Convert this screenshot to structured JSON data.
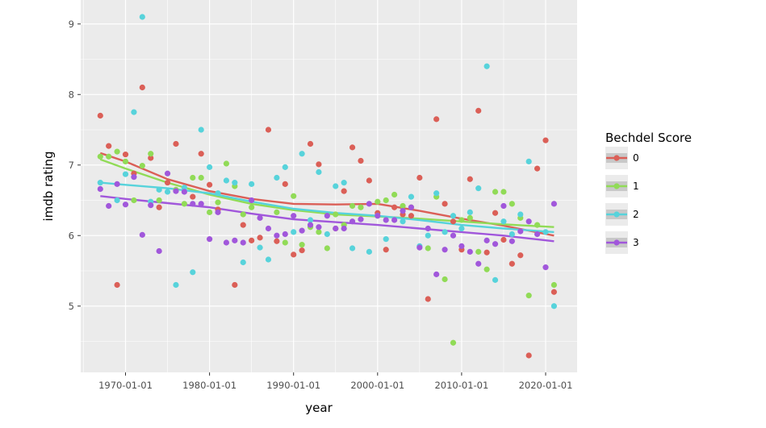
{
  "chart_data": {
    "type": "scatter",
    "xlabel": "year",
    "ylabel": "imdb rating",
    "x_type": "date",
    "xlim": [
      "1964-09-01",
      "2023-10-01"
    ],
    "ylim": [
      4.06,
      9.34
    ],
    "x_ticks": [
      "1970-01-01",
      "1980-01-01",
      "1990-01-01",
      "2000-01-01",
      "2010-01-01",
      "2020-01-01"
    ],
    "y_ticks": [
      5,
      6,
      7,
      8,
      9
    ],
    "grid": true,
    "legend": {
      "title": "Bechdel Score",
      "placement": "right"
    },
    "series": [
      {
        "name": "0",
        "color": "#db5f57",
        "points": [
          [
            "1967-01-01",
            7.7
          ],
          [
            "1968-01-01",
            7.27
          ],
          [
            "1969-01-01",
            5.3
          ],
          [
            "1970-01-01",
            7.15
          ],
          [
            "1971-01-01",
            6.88
          ],
          [
            "1972-01-01",
            8.1
          ],
          [
            "1973-01-01",
            7.1
          ],
          [
            "1974-01-01",
            6.4
          ],
          [
            "1975-01-01",
            6.75
          ],
          [
            "1976-01-01",
            7.3
          ],
          [
            "1978-01-01",
            6.55
          ],
          [
            "1979-01-01",
            7.16
          ],
          [
            "1980-01-01",
            6.72
          ],
          [
            "1981-01-01",
            6.37
          ],
          [
            "1983-01-01",
            5.3
          ],
          [
            "1984-01-01",
            6.15
          ],
          [
            "1985-01-01",
            5.93
          ],
          [
            "1986-01-01",
            5.97
          ],
          [
            "1987-01-01",
            7.5
          ],
          [
            "1988-01-01",
            5.92
          ],
          [
            "1989-01-01",
            6.73
          ],
          [
            "1990-01-01",
            5.73
          ],
          [
            "1991-01-01",
            5.79
          ],
          [
            "1992-01-01",
            7.3
          ],
          [
            "1993-01-01",
            7.01
          ],
          [
            "1995-01-01",
            6.1
          ],
          [
            "1996-01-01",
            6.63
          ],
          [
            "1997-01-01",
            7.25
          ],
          [
            "1998-01-01",
            7.06
          ],
          [
            "1999-01-01",
            6.78
          ],
          [
            "2000-01-01",
            6.32
          ],
          [
            "2001-01-01",
            5.8
          ],
          [
            "2002-01-01",
            6.4
          ],
          [
            "2003-01-01",
            6.3
          ],
          [
            "2004-01-01",
            6.28
          ],
          [
            "2005-01-01",
            6.82
          ],
          [
            "2006-01-01",
            5.1
          ],
          [
            "2007-01-01",
            7.65
          ],
          [
            "2008-01-01",
            6.45
          ],
          [
            "2009-01-01",
            6.2
          ],
          [
            "2010-01-01",
            5.8
          ],
          [
            "2011-01-01",
            6.8
          ],
          [
            "2012-01-01",
            7.77
          ],
          [
            "2013-01-01",
            5.76
          ],
          [
            "2014-01-01",
            6.32
          ],
          [
            "2015-01-01",
            5.94
          ],
          [
            "2016-01-01",
            5.6
          ],
          [
            "2017-01-01",
            5.72
          ],
          [
            "2018-01-01",
            4.3
          ],
          [
            "2019-01-01",
            6.95
          ],
          [
            "2020-01-01",
            7.35
          ],
          [
            "2021-01-01",
            5.2
          ]
        ],
        "smooth": [
          [
            "1967-01-01",
            7.17
          ],
          [
            "1970-01-01",
            7.05
          ],
          [
            "1975-01-01",
            6.8
          ],
          [
            "1980-01-01",
            6.63
          ],
          [
            "1985-01-01",
            6.52
          ],
          [
            "1990-01-01",
            6.45
          ],
          [
            "1995-01-01",
            6.44
          ],
          [
            "2000-01-01",
            6.45
          ],
          [
            "2005-01-01",
            6.35
          ],
          [
            "2010-01-01",
            6.24
          ],
          [
            "2015-01-01",
            6.14
          ],
          [
            "2021-01-01",
            6.0
          ]
        ]
      },
      {
        "name": "1",
        "color": "#91db57",
        "points": [
          [
            "1967-01-01",
            7.12
          ],
          [
            "1968-01-01",
            7.12
          ],
          [
            "1969-01-01",
            7.19
          ],
          [
            "1970-01-01",
            7.05
          ],
          [
            "1971-01-01",
            6.5
          ],
          [
            "1972-01-01",
            6.99
          ],
          [
            "1973-01-01",
            7.16
          ],
          [
            "1974-01-01",
            6.5
          ],
          [
            "1976-01-01",
            6.65
          ],
          [
            "1977-01-01",
            6.45
          ],
          [
            "1978-01-01",
            6.82
          ],
          [
            "1979-01-01",
            6.82
          ],
          [
            "1980-01-01",
            6.33
          ],
          [
            "1981-01-01",
            6.47
          ],
          [
            "1982-01-01",
            7.02
          ],
          [
            "1983-01-01",
            6.7
          ],
          [
            "1984-01-01",
            6.3
          ],
          [
            "1985-01-01",
            6.4
          ],
          [
            "1988-01-01",
            6.33
          ],
          [
            "1989-01-01",
            5.9
          ],
          [
            "1990-01-01",
            6.56
          ],
          [
            "1991-01-01",
            5.87
          ],
          [
            "1992-01-01",
            6.12
          ],
          [
            "1993-01-01",
            6.05
          ],
          [
            "1994-01-01",
            5.82
          ],
          [
            "1995-01-01",
            6.3
          ],
          [
            "1996-01-01",
            6.15
          ],
          [
            "1997-01-01",
            6.42
          ],
          [
            "1998-01-01",
            6.4
          ],
          [
            "2000-01-01",
            6.48
          ],
          [
            "2001-01-01",
            6.5
          ],
          [
            "2002-01-01",
            6.58
          ],
          [
            "2003-01-01",
            6.42
          ],
          [
            "2004-01-01",
            6.4
          ],
          [
            "2006-01-01",
            5.82
          ],
          [
            "2007-01-01",
            6.55
          ],
          [
            "2008-01-01",
            5.38
          ],
          [
            "2009-01-01",
            4.48
          ],
          [
            "2010-01-01",
            6.22
          ],
          [
            "2011-01-01",
            6.25
          ],
          [
            "2012-01-01",
            5.77
          ],
          [
            "2013-01-01",
            5.52
          ],
          [
            "2014-01-01",
            6.62
          ],
          [
            "2015-01-01",
            6.62
          ],
          [
            "2016-01-01",
            6.45
          ],
          [
            "2017-01-01",
            6.25
          ],
          [
            "2018-01-01",
            5.15
          ],
          [
            "2019-01-01",
            6.15
          ],
          [
            "2021-01-01",
            5.3
          ]
        ],
        "smooth": [
          [
            "1967-01-01",
            7.08
          ],
          [
            "1970-01-01",
            6.95
          ],
          [
            "1975-01-01",
            6.75
          ],
          [
            "1980-01-01",
            6.58
          ],
          [
            "1985-01-01",
            6.45
          ],
          [
            "1990-01-01",
            6.36
          ],
          [
            "1995-01-01",
            6.3
          ],
          [
            "2000-01-01",
            6.27
          ],
          [
            "2005-01-01",
            6.24
          ],
          [
            "2010-01-01",
            6.2
          ],
          [
            "2015-01-01",
            6.16
          ],
          [
            "2021-01-01",
            6.12
          ]
        ]
      },
      {
        "name": "2",
        "color": "#57d3db",
        "points": [
          [
            "1967-01-01",
            6.75
          ],
          [
            "1969-01-01",
            6.5
          ],
          [
            "1970-01-01",
            6.87
          ],
          [
            "1971-01-01",
            7.75
          ],
          [
            "1972-01-01",
            9.1
          ],
          [
            "1973-01-01",
            6.48
          ],
          [
            "1974-01-01",
            6.65
          ],
          [
            "1975-01-01",
            6.62
          ],
          [
            "1976-01-01",
            5.3
          ],
          [
            "1977-01-01",
            6.68
          ],
          [
            "1978-01-01",
            5.48
          ],
          [
            "1979-01-01",
            7.5
          ],
          [
            "1980-01-01",
            6.97
          ],
          [
            "1981-01-01",
            6.6
          ],
          [
            "1982-01-01",
            6.78
          ],
          [
            "1983-01-01",
            6.75
          ],
          [
            "1984-01-01",
            5.62
          ],
          [
            "1985-01-01",
            6.73
          ],
          [
            "1986-01-01",
            5.83
          ],
          [
            "1987-01-01",
            5.66
          ],
          [
            "1988-01-01",
            6.82
          ],
          [
            "1989-01-01",
            6.97
          ],
          [
            "1990-01-01",
            6.05
          ],
          [
            "1991-01-01",
            7.16
          ],
          [
            "1992-01-01",
            6.22
          ],
          [
            "1993-01-01",
            6.9
          ],
          [
            "1994-01-01",
            6.02
          ],
          [
            "1995-01-01",
            6.7
          ],
          [
            "1996-01-01",
            6.75
          ],
          [
            "1997-01-01",
            5.82
          ],
          [
            "1999-01-01",
            5.77
          ],
          [
            "2000-01-01",
            6.28
          ],
          [
            "2001-01-01",
            5.95
          ],
          [
            "2003-01-01",
            6.2
          ],
          [
            "2004-01-01",
            6.55
          ],
          [
            "2005-01-01",
            5.85
          ],
          [
            "2006-01-01",
            6.0
          ],
          [
            "2007-01-01",
            6.6
          ],
          [
            "2008-01-01",
            6.05
          ],
          [
            "2009-01-01",
            6.28
          ],
          [
            "2010-01-01",
            6.1
          ],
          [
            "2011-01-01",
            6.33
          ],
          [
            "2012-01-01",
            6.67
          ],
          [
            "2013-01-01",
            8.4
          ],
          [
            "2014-01-01",
            5.37
          ],
          [
            "2015-01-01",
            6.2
          ],
          [
            "2016-01-01",
            6.02
          ],
          [
            "2017-01-01",
            6.3
          ],
          [
            "2018-01-01",
            7.05
          ],
          [
            "2020-01-01",
            6.05
          ],
          [
            "2021-01-01",
            5.0
          ]
        ],
        "smooth": [
          [
            "1967-01-01",
            6.75
          ],
          [
            "1970-01-01",
            6.72
          ],
          [
            "1975-01-01",
            6.67
          ],
          [
            "1980-01-01",
            6.6
          ],
          [
            "1985-01-01",
            6.48
          ],
          [
            "1990-01-01",
            6.38
          ],
          [
            "1995-01-01",
            6.32
          ],
          [
            "2000-01-01",
            6.28
          ],
          [
            "2005-01-01",
            6.22
          ],
          [
            "2010-01-01",
            6.15
          ],
          [
            "2015-01-01",
            6.1
          ],
          [
            "2021-01-01",
            6.05
          ]
        ]
      },
      {
        "name": "3",
        "color": "#a157db",
        "points": [
          [
            "1967-01-01",
            6.66
          ],
          [
            "1968-01-01",
            6.42
          ],
          [
            "1969-01-01",
            6.73
          ],
          [
            "1970-01-01",
            6.44
          ],
          [
            "1971-01-01",
            6.83
          ],
          [
            "1972-01-01",
            6.01
          ],
          [
            "1973-01-01",
            6.43
          ],
          [
            "1974-01-01",
            5.78
          ],
          [
            "1975-01-01",
            6.88
          ],
          [
            "1976-01-01",
            6.63
          ],
          [
            "1977-01-01",
            6.62
          ],
          [
            "1978-01-01",
            6.45
          ],
          [
            "1979-01-01",
            6.45
          ],
          [
            "1980-01-01",
            5.95
          ],
          [
            "1981-01-01",
            6.33
          ],
          [
            "1982-01-01",
            5.9
          ],
          [
            "1983-01-01",
            5.93
          ],
          [
            "1984-01-01",
            5.9
          ],
          [
            "1985-01-01",
            6.5
          ],
          [
            "1986-01-01",
            6.25
          ],
          [
            "1987-01-01",
            6.1
          ],
          [
            "1988-01-01",
            6.0
          ],
          [
            "1989-01-01",
            6.02
          ],
          [
            "1990-01-01",
            6.28
          ],
          [
            "1991-01-01",
            6.07
          ],
          [
            "1992-01-01",
            6.15
          ],
          [
            "1993-01-01",
            6.12
          ],
          [
            "1994-01-01",
            6.28
          ],
          [
            "1995-01-01",
            6.1
          ],
          [
            "1996-01-01",
            6.1
          ],
          [
            "1997-01-01",
            6.2
          ],
          [
            "1998-01-01",
            6.23
          ],
          [
            "1999-01-01",
            6.45
          ],
          [
            "2000-01-01",
            6.28
          ],
          [
            "2001-01-01",
            6.22
          ],
          [
            "2002-01-01",
            6.22
          ],
          [
            "2003-01-01",
            6.35
          ],
          [
            "2004-01-01",
            6.4
          ],
          [
            "2005-01-01",
            5.83
          ],
          [
            "2006-01-01",
            6.1
          ],
          [
            "2007-01-01",
            5.45
          ],
          [
            "2008-01-01",
            5.8
          ],
          [
            "2009-01-01",
            6.0
          ],
          [
            "2010-01-01",
            5.85
          ],
          [
            "2011-01-01",
            5.77
          ],
          [
            "2012-01-01",
            5.6
          ],
          [
            "2013-01-01",
            5.93
          ],
          [
            "2014-01-01",
            5.88
          ],
          [
            "2015-01-01",
            6.42
          ],
          [
            "2016-01-01",
            5.92
          ],
          [
            "2017-01-01",
            6.06
          ],
          [
            "2018-01-01",
            6.2
          ],
          [
            "2019-01-01",
            6.02
          ],
          [
            "2020-01-01",
            5.55
          ],
          [
            "2021-01-01",
            6.45
          ]
        ],
        "smooth": [
          [
            "1967-01-01",
            6.56
          ],
          [
            "1970-01-01",
            6.52
          ],
          [
            "1975-01-01",
            6.46
          ],
          [
            "1980-01-01",
            6.4
          ],
          [
            "1985-01-01",
            6.31
          ],
          [
            "1990-01-01",
            6.23
          ],
          [
            "1995-01-01",
            6.19
          ],
          [
            "2000-01-01",
            6.15
          ],
          [
            "2005-01-01",
            6.1
          ],
          [
            "2010-01-01",
            6.05
          ],
          [
            "2015-01-01",
            6.0
          ],
          [
            "2021-01-01",
            5.92
          ]
        ]
      }
    ]
  }
}
